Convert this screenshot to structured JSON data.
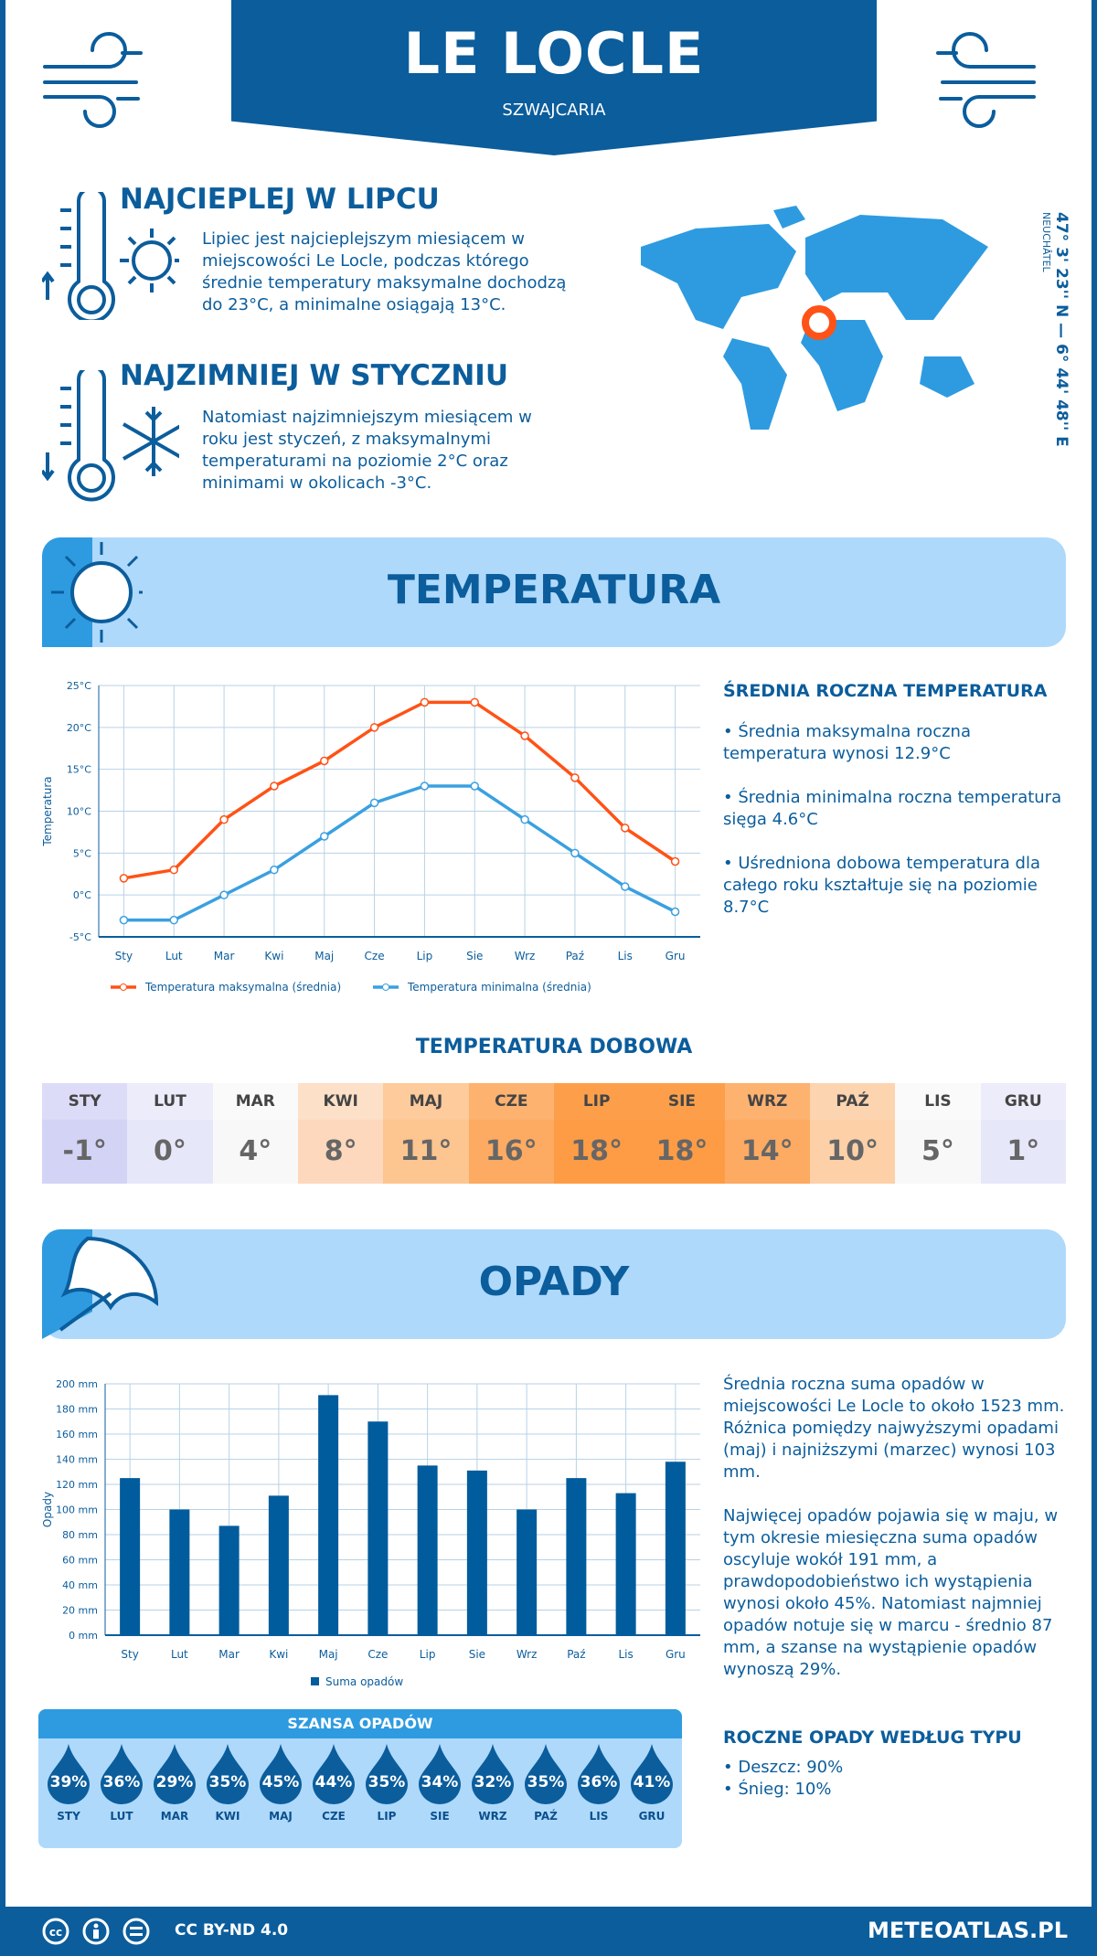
{
  "header": {
    "title": "LE LOCLE",
    "country": "SZWAJCARIA"
  },
  "warm": {
    "title": "NAJCIEPLEJ W LIPCU",
    "text": "Lipiec jest najcieplejszym miesiącem w miejscowości Le Locle, podczas którego średnie temperatury maksymalne dochodzą do 23°C, a minimalne osiągają 13°C."
  },
  "cold": {
    "title": "NAJZIMNIEJ W STYCZNIU",
    "text": "Natomiast najzimniejszym miesiącem w roku jest styczeń, z maksymalnymi temperaturami na poziomie 2°C oraz minimami w okolicach -3°C."
  },
  "map": {
    "coords": "47° 3' 23'' N — 6° 44' 48'' E",
    "region": "NEUCHÂTEL"
  },
  "temp_section": {
    "title": "TEMPERATURA",
    "side_title": "ŚREDNIA ROCZNA TEMPERATURA",
    "bullets": [
      "• Średnia maksymalna roczna temperatura wynosi 12.9°C",
      "• Średnia minimalna roczna temperatura sięga 4.6°C",
      "• Uśredniona dobowa temperatura dla całego roku kształtuje się na poziomie 8.7°C"
    ]
  },
  "daily": {
    "title": "TEMPERATURA DOBOWA",
    "months": [
      "STY",
      "LUT",
      "MAR",
      "KWI",
      "MAJ",
      "CZE",
      "LIP",
      "SIE",
      "WRZ",
      "PAŹ",
      "LIS",
      "GRU"
    ],
    "values": [
      "-1°",
      "0°",
      "4°",
      "8°",
      "11°",
      "16°",
      "18°",
      "18°",
      "14°",
      "10°",
      "5°",
      "1°"
    ],
    "head_colors": [
      "#dcdcf8",
      "#ececfb",
      "#fafafa",
      "#fde0c8",
      "#fdcb9c",
      "#fdb270",
      "#fd9f4a",
      "#fd9f4a",
      "#fdb270",
      "#fdd4b0",
      "#fafafa",
      "#ececfb"
    ],
    "value_colors": [
      "#d3d3f6",
      "#e7e7fa",
      "#f8f8f8",
      "#fed8bc",
      "#fdc58f",
      "#fdaa62",
      "#fd9c45",
      "#fd9c45",
      "#fdaa62",
      "#fdd0a8",
      "#f8f8f8",
      "#e7e7fa"
    ]
  },
  "precip_section": {
    "title": "OPADY",
    "text1": "Średnia roczna suma opadów w miejscowości Le Locle to około 1523 mm. Różnica pomiędzy najwyższymi opadami (maj) i najniższymi (marzec) wynosi 103 mm.",
    "text2": "Najwięcej opadów pojawia się w maju, w tym okresie miesięczna suma opadów oscyluje wokół 191 mm, a prawdopodobieństwo ich wystąpienia wynosi około 45%. Natomiast najmniej opadów notuje się w marcu - średnio 87 mm, a szanse na wystąpienie opadów wynoszą 29%.",
    "type_title": "ROCZNE OPADY WEDŁUG TYPU",
    "types": [
      "• Deszcz: 90%",
      "• Śnieg: 10%"
    ]
  },
  "chance": {
    "title": "SZANSA OPADÓW",
    "months": [
      "STY",
      "LUT",
      "MAR",
      "KWI",
      "MAJ",
      "CZE",
      "LIP",
      "SIE",
      "WRZ",
      "PAŹ",
      "LIS",
      "GRU"
    ],
    "values": [
      "39%",
      "36%",
      "29%",
      "35%",
      "45%",
      "44%",
      "35%",
      "34%",
      "32%",
      "35%",
      "36%",
      "41%"
    ]
  },
  "footer": {
    "license": "CC BY-ND 4.0",
    "site": "METEOATLAS.PL"
  },
  "chart_data": [
    {
      "type": "line",
      "categories": [
        "Sty",
        "Lut",
        "Mar",
        "Kwi",
        "Maj",
        "Cze",
        "Lip",
        "Sie",
        "Wrz",
        "Paź",
        "Lis",
        "Gru"
      ],
      "ylabel": "Temperatura",
      "ylim": [
        -5,
        25
      ],
      "yticks": [
        "-5°C",
        "0°C",
        "5°C",
        "10°C",
        "15°C",
        "20°C",
        "25°C"
      ],
      "grid": true,
      "legend": "bottom",
      "series": [
        {
          "name": "Temperatura maksymalna (średnia)",
          "color": "#ff5216",
          "values": [
            2,
            3,
            9,
            13,
            16,
            20,
            23,
            23,
            19,
            14,
            8,
            4
          ]
        },
        {
          "name": "Temperatura minimalna (średnia)",
          "color": "#3aa0e0",
          "values": [
            -3,
            -3,
            0,
            3,
            7,
            11,
            13,
            13,
            9,
            5,
            1,
            -2
          ]
        }
      ]
    },
    {
      "type": "bar",
      "categories": [
        "Sty",
        "Lut",
        "Mar",
        "Kwi",
        "Maj",
        "Cze",
        "Lip",
        "Sie",
        "Wrz",
        "Paź",
        "Lis",
        "Gru"
      ],
      "ylabel": "Opady",
      "ylim": [
        0,
        200
      ],
      "yticks": [
        "0 mm",
        "20 mm",
        "40 mm",
        "60 mm",
        "80 mm",
        "100 mm",
        "120 mm",
        "140 mm",
        "160 mm",
        "180 mm",
        "200 mm"
      ],
      "grid": true,
      "legend": "bottom",
      "series": [
        {
          "name": "Suma opadów",
          "color": "#005c9c",
          "values": [
            125,
            100,
            87,
            111,
            191,
            170,
            135,
            131,
            100,
            125,
            113,
            138
          ]
        }
      ]
    }
  ]
}
